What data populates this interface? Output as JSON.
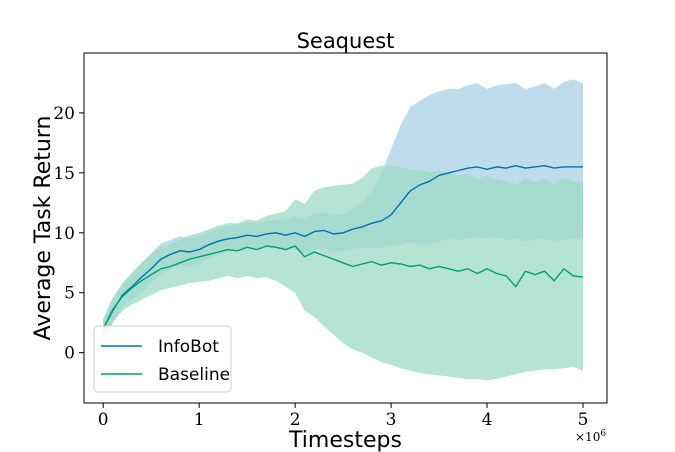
{
  "chart_data": {
    "type": "line",
    "title": "Seaquest",
    "xlabel": "Timesteps",
    "ylabel": "Average Task Return",
    "x_multiplier_label": "×10^6",
    "xlim": [
      -0.2,
      5.25
    ],
    "ylim": [
      -4.2,
      25
    ],
    "xticks": [
      0,
      1,
      2,
      3,
      4,
      5
    ],
    "yticks": [
      0,
      5,
      10,
      15,
      20
    ],
    "grid": false,
    "legend_position": "lower-left",
    "x": [
      0.0,
      0.1,
      0.2,
      0.3,
      0.4,
      0.5,
      0.6,
      0.7,
      0.8,
      0.9,
      1.0,
      1.1,
      1.2,
      1.3,
      1.4,
      1.5,
      1.6,
      1.7,
      1.8,
      1.9,
      2.0,
      2.1,
      2.2,
      2.3,
      2.4,
      2.5,
      2.6,
      2.7,
      2.8,
      2.9,
      3.0,
      3.1,
      3.2,
      3.3,
      3.4,
      3.5,
      3.6,
      3.7,
      3.8,
      3.9,
      4.0,
      4.1,
      4.2,
      4.3,
      4.4,
      4.5,
      4.6,
      4.7,
      4.8,
      4.9,
      5.0
    ],
    "series": [
      {
        "name": "InfoBot",
        "color": "#0072b2",
        "band_color": "#a9d0e6",
        "values": [
          2.0,
          3.5,
          4.8,
          5.5,
          6.3,
          7.0,
          7.8,
          8.2,
          8.5,
          8.4,
          8.6,
          9.0,
          9.3,
          9.5,
          9.6,
          9.8,
          9.7,
          9.9,
          10.0,
          9.8,
          10.0,
          9.7,
          10.1,
          10.2,
          9.9,
          10.0,
          10.3,
          10.5,
          10.8,
          11.0,
          11.5,
          12.5,
          13.5,
          14.0,
          14.3,
          14.8,
          15.0,
          15.2,
          15.4,
          15.5,
          15.3,
          15.5,
          15.4,
          15.6,
          15.4,
          15.5,
          15.6,
          15.4,
          15.5,
          15.5,
          15.5
        ],
        "lower": [
          1.0,
          2.5,
          3.8,
          4.5,
          5.0,
          5.8,
          6.5,
          7.0,
          7.3,
          7.2,
          7.4,
          7.9,
          8.2,
          8.4,
          8.5,
          8.7,
          8.6,
          8.8,
          8.9,
          8.5,
          8.6,
          8.2,
          8.6,
          8.7,
          8.4,
          8.5,
          8.7,
          8.7,
          8.8,
          8.7,
          8.9,
          9.0,
          9.2,
          9.0,
          9.1,
          9.3,
          9.5,
          9.4,
          9.5,
          9.6,
          9.5,
          9.6,
          9.4,
          9.5,
          9.3,
          9.4,
          9.5,
          9.3,
          9.4,
          9.5,
          9.5
        ],
        "upper": [
          2.8,
          4.5,
          5.7,
          6.5,
          7.5,
          8.3,
          9.1,
          9.4,
          9.7,
          9.6,
          9.8,
          10.1,
          10.4,
          10.6,
          10.7,
          10.9,
          10.8,
          11.0,
          11.1,
          11.1,
          11.4,
          11.2,
          11.6,
          11.7,
          11.4,
          11.6,
          12.0,
          12.5,
          13.5,
          15.0,
          17.0,
          19.0,
          20.5,
          21.0,
          21.5,
          21.8,
          22.0,
          22.0,
          22.3,
          22.5,
          22.0,
          22.3,
          22.4,
          22.5,
          22.0,
          22.2,
          22.5,
          22.0,
          22.6,
          22.8,
          22.5
        ]
      },
      {
        "name": "Baseline",
        "color": "#009e73",
        "band_color": "#9edbc6",
        "values": [
          2.0,
          3.6,
          4.7,
          5.4,
          6.0,
          6.5,
          7.0,
          7.2,
          7.5,
          7.8,
          8.0,
          8.2,
          8.4,
          8.6,
          8.5,
          8.8,
          8.6,
          8.9,
          8.8,
          8.6,
          8.9,
          8.0,
          8.4,
          8.1,
          7.8,
          7.5,
          7.2,
          7.4,
          7.6,
          7.3,
          7.5,
          7.4,
          7.2,
          7.3,
          7.0,
          7.2,
          7.0,
          6.8,
          7.0,
          6.6,
          7.0,
          6.6,
          6.4,
          5.5,
          6.8,
          6.5,
          6.8,
          6.0,
          7.0,
          6.4,
          6.3
        ],
        "lower": [
          1.0,
          2.5,
          3.5,
          4.0,
          4.4,
          4.8,
          5.2,
          5.4,
          5.6,
          5.8,
          5.9,
          6.0,
          6.2,
          6.4,
          6.2,
          6.4,
          6.2,
          6.3,
          6.0,
          5.5,
          5.0,
          3.5,
          3.0,
          2.2,
          1.5,
          0.8,
          0.3,
          0.0,
          -0.4,
          -0.8,
          -1.0,
          -1.3,
          -1.5,
          -1.7,
          -1.8,
          -1.9,
          -2.0,
          -2.1,
          -2.2,
          -2.2,
          -2.3,
          -2.2,
          -2.0,
          -1.8,
          -1.6,
          -1.5,
          -1.4,
          -1.4,
          -1.3,
          -1.2,
          -1.5
        ],
        "upper": [
          2.8,
          4.6,
          5.8,
          6.7,
          7.5,
          8.2,
          8.8,
          9.0,
          9.4,
          9.8,
          10.0,
          10.3,
          10.6,
          10.8,
          10.8,
          11.1,
          11.0,
          11.4,
          11.6,
          11.8,
          12.8,
          12.4,
          13.5,
          13.8,
          13.9,
          14.0,
          14.1,
          14.6,
          15.4,
          15.6,
          15.6,
          15.5,
          15.2,
          15.3,
          15.0,
          15.2,
          15.0,
          14.8,
          14.9,
          14.5,
          14.8,
          14.4,
          14.3,
          14.0,
          14.6,
          14.2,
          14.5,
          14.0,
          14.6,
          14.3,
          14.2
        ]
      }
    ]
  }
}
